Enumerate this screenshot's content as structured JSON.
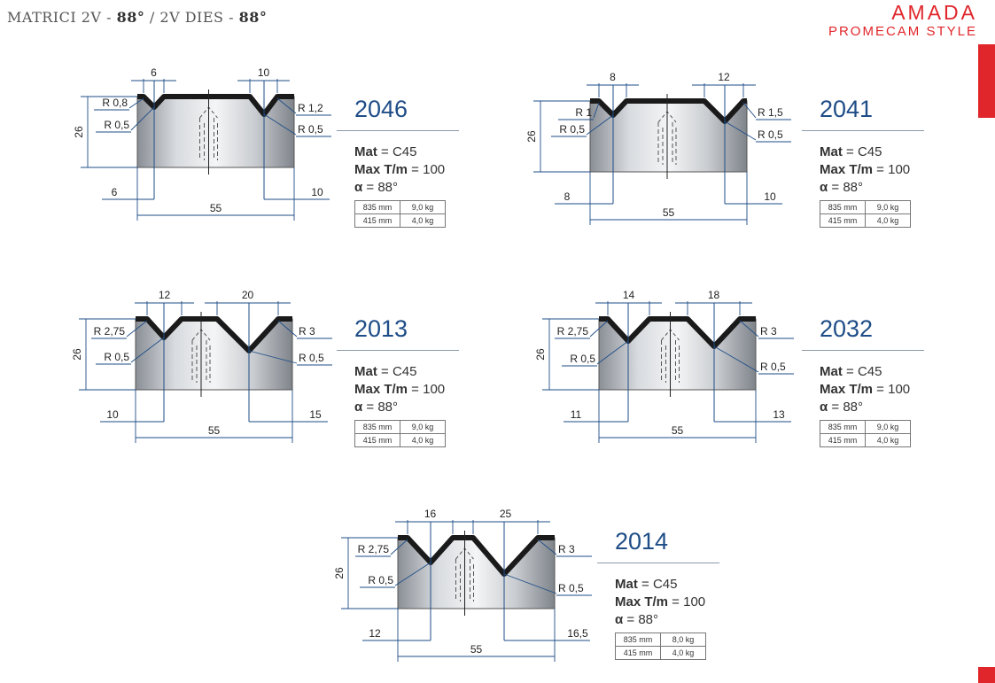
{
  "header": {
    "prefix": "MATRICI 2V - ",
    "angle1": "88°",
    "mid": " / 2V DIES - ",
    "angle2": "88°"
  },
  "brand": {
    "name": "AMADA",
    "style": "PROMECAM STYLE",
    "color": "#e0262b"
  },
  "colors": {
    "code": "#1e4d87",
    "profile": "#1a1a1a"
  },
  "dies": [
    {
      "code": "2046",
      "mat_label": "Mat",
      "mat_value": " = C45",
      "maxt_label": "Max T/m",
      "maxt_value": " = 100",
      "alpha_symbol": "α",
      "alpha_value": " = 88°",
      "weights": [
        [
          "835 mm",
          "9,0 kg"
        ],
        [
          "415 mm",
          "4,0 kg"
        ]
      ],
      "dims": {
        "top_left": "6",
        "top_right": "10",
        "height": "26",
        "r_tl": "R 0,8",
        "r_bl": "R 0,5",
        "r_tr": "R 1,2",
        "r_br": "R 0,5",
        "bot_left": "6",
        "bot_right": "10",
        "width": "55"
      }
    },
    {
      "code": "2041",
      "mat_label": "Mat",
      "mat_value": " = C45",
      "maxt_label": "Max T/m",
      "maxt_value": " = 100",
      "alpha_symbol": "α",
      "alpha_value": " = 88°",
      "weights": [
        [
          "835 mm",
          "9,0 kg"
        ],
        [
          "415 mm",
          "4,0 kg"
        ]
      ],
      "dims": {
        "top_left": "8",
        "top_right": "12",
        "height": "26",
        "r_tl": "R 1",
        "r_bl": "R 0,5",
        "r_tr": "R 1,5",
        "r_br": "R 0,5",
        "bot_left": "8",
        "bot_right": "10",
        "width": "55"
      }
    },
    {
      "code": "2013",
      "mat_label": "Mat",
      "mat_value": " = C45",
      "maxt_label": "Max T/m",
      "maxt_value": " = 100",
      "alpha_symbol": "α",
      "alpha_value": " = 88°",
      "weights": [
        [
          "835 mm",
          "9,0 kg"
        ],
        [
          "415 mm",
          "4,0 kg"
        ]
      ],
      "dims": {
        "top_left": "12",
        "top_right": "20",
        "height": "26",
        "r_tl": "R 2,75",
        "r_bl": "R 0,5",
        "r_tr": "R 3",
        "r_br": "R 0,5",
        "bot_left": "10",
        "bot_right": "15",
        "width": "55"
      }
    },
    {
      "code": "2032",
      "mat_label": "Mat",
      "mat_value": " = C45",
      "maxt_label": "Max T/m",
      "maxt_value": " = 100",
      "alpha_symbol": "α",
      "alpha_value": " = 88°",
      "weights": [
        [
          "835 mm",
          "9,0 kg"
        ],
        [
          "415 mm",
          "4,0 kg"
        ]
      ],
      "dims": {
        "top_left": "14",
        "top_right": "18",
        "height": "26",
        "r_tl": "R 2,75",
        "r_bl": "R 0,5",
        "r_tr": "R 3",
        "r_br": "R 0,5",
        "bot_left": "11",
        "bot_right": "13",
        "width": "55"
      }
    },
    {
      "code": "2014",
      "mat_label": "Mat",
      "mat_value": " = C45",
      "maxt_label": "Max T/m",
      "maxt_value": " = 100",
      "alpha_symbol": "α",
      "alpha_value": " = 88°",
      "weights": [
        [
          "835 mm",
          "8,0 kg"
        ],
        [
          "415 mm",
          "4,0 kg"
        ]
      ],
      "dims": {
        "top_left": "16",
        "top_right": "25",
        "height": "26",
        "r_tl": "R 2,75",
        "r_bl": "R 0,5",
        "r_tr": "R 3",
        "r_br": "R 0,5",
        "bot_left": "12",
        "bot_right": "16,5",
        "width": "55"
      }
    }
  ]
}
